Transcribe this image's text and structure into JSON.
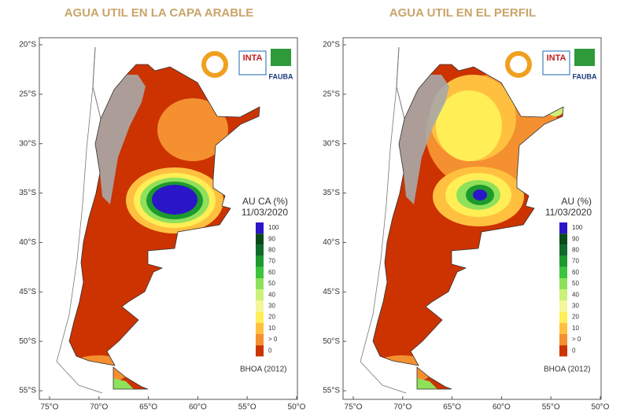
{
  "panels": [
    {
      "title": "AGUA UTIL EN LA CAPA ARABLE",
      "legend_title": "AU CA (%)",
      "date": "11/03/2020",
      "source": "BHOA (2012)"
    },
    {
      "title": "AGUA UTIL EN EL PERFIL",
      "legend_title": "AU (%)",
      "date": "11/03/2020",
      "source": "BHOA (2012)"
    }
  ],
  "latitude_labels": [
    "20°S",
    "25°S",
    "30°S",
    "35°S",
    "40°S",
    "45°S",
    "50°S",
    "55°S"
  ],
  "longitude_labels": [
    "75°O",
    "70°O",
    "65°O",
    "60°O",
    "55°O",
    "50°O"
  ],
  "legend": {
    "labels": [
      "100",
      "90",
      "80",
      "70",
      "60",
      "50",
      "40",
      "30",
      "20",
      "10",
      "> 0",
      "0"
    ],
    "colors": [
      "#2a16c8",
      "#0a4a1a",
      "#106a2a",
      "#1d9a2e",
      "#3cc43c",
      "#8fe05a",
      "#ccf07a",
      "#f5f59a",
      "#ffee55",
      "#ffc040",
      "#f49030",
      "#cc3300"
    ]
  },
  "logos": {
    "inta": "INTA",
    "fauba": "FAUBA"
  }
}
